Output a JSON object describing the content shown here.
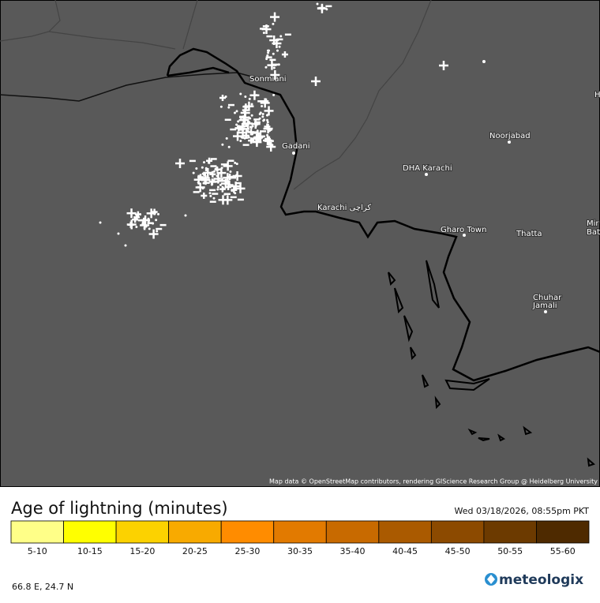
{
  "map": {
    "places": [
      {
        "label": "Sonmiani"
      },
      {
        "label": "Gadani"
      },
      {
        "label": "Noorjabad"
      },
      {
        "label": "DHA Karachi"
      },
      {
        "label": "Karachi كراچى"
      },
      {
        "label": "Gharo Town"
      },
      {
        "label": "Thatta"
      },
      {
        "label": "Chuhar"
      },
      {
        "label": "Jamali"
      },
      {
        "label": "Mir"
      },
      {
        "label": "Bat"
      },
      {
        "label": "H"
      }
    ],
    "attribution": "Map data © OpenStreetMap contributors, rendering GIScience Research Group @ Heidelberg University"
  },
  "legend": {
    "title": "Age of lightning (minutes)",
    "timestamp": "Wed 03/18/2026, 08:55pm PKT",
    "items": [
      {
        "label": "5-10",
        "color": "#ffff88"
      },
      {
        "label": "10-15",
        "color": "#ffff00"
      },
      {
        "label": "15-20",
        "color": "#fcd200"
      },
      {
        "label": "20-25",
        "color": "#f8aa00"
      },
      {
        "label": "25-30",
        "color": "#ff8c00"
      },
      {
        "label": "30-35",
        "color": "#e27a00"
      },
      {
        "label": "35-40",
        "color": "#c86a00"
      },
      {
        "label": "40-45",
        "color": "#aa5a00"
      },
      {
        "label": "45-50",
        "color": "#8c4a00"
      },
      {
        "label": "50-55",
        "color": "#6c3a00"
      },
      {
        "label": "55-60",
        "color": "#4e2a00"
      }
    ]
  },
  "footer": {
    "coordinates": "66.8 E, 24.7 N",
    "brand": "meteologix"
  }
}
